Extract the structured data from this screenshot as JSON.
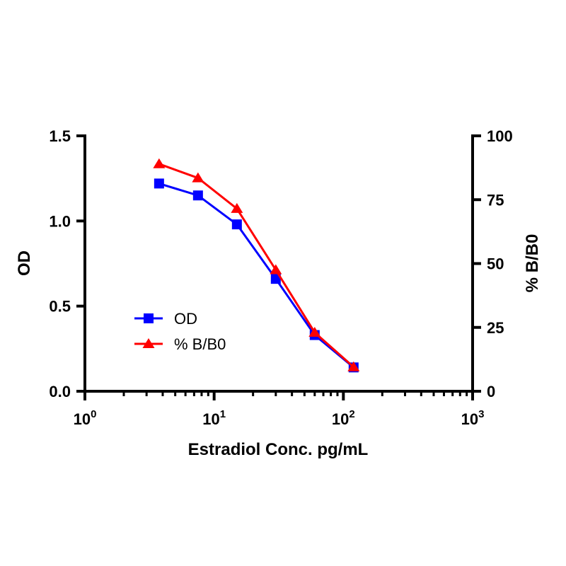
{
  "chart_data": {
    "type": "line",
    "title": "",
    "xlabel": "Estradiol Conc. pg/mL",
    "ylabel": "OD",
    "y2label": "% B/B0",
    "xscale": "log",
    "xlim": [
      1,
      1000
    ],
    "ylim": [
      0,
      1.5
    ],
    "y2lim": [
      0,
      100
    ],
    "x_ticks": [
      {
        "value": 1,
        "base": "10",
        "exp": "0"
      },
      {
        "value": 10,
        "base": "10",
        "exp": "1"
      },
      {
        "value": 100,
        "base": "10",
        "exp": "2"
      },
      {
        "value": 1000,
        "base": "10",
        "exp": "3"
      }
    ],
    "y_ticks": [
      {
        "value": 0,
        "label": "0.0"
      },
      {
        "value": 0.5,
        "label": "0.5"
      },
      {
        "value": 1.0,
        "label": "1.0"
      },
      {
        "value": 1.5,
        "label": "1.5"
      }
    ],
    "y2_ticks": [
      {
        "value": 0,
        "label": "0"
      },
      {
        "value": 25,
        "label": "25"
      },
      {
        "value": 50,
        "label": "50"
      },
      {
        "value": 75,
        "label": "75"
      },
      {
        "value": 100,
        "label": "100"
      }
    ],
    "grid": false,
    "legend_position": "center-left",
    "series": [
      {
        "name": "OD",
        "axis": "left",
        "marker": "square",
        "color": "#0000ff",
        "x": [
          3.75,
          7.5,
          15,
          30,
          60,
          120
        ],
        "y": [
          1.22,
          1.15,
          0.98,
          0.66,
          0.33,
          0.14
        ]
      },
      {
        "name": "% B/B0",
        "axis": "right",
        "marker": "triangle",
        "color": "#ff0000",
        "x": [
          3.75,
          7.5,
          15,
          30,
          60,
          120
        ],
        "y": [
          89,
          83.5,
          71.5,
          47.5,
          23,
          9.5
        ]
      }
    ]
  }
}
